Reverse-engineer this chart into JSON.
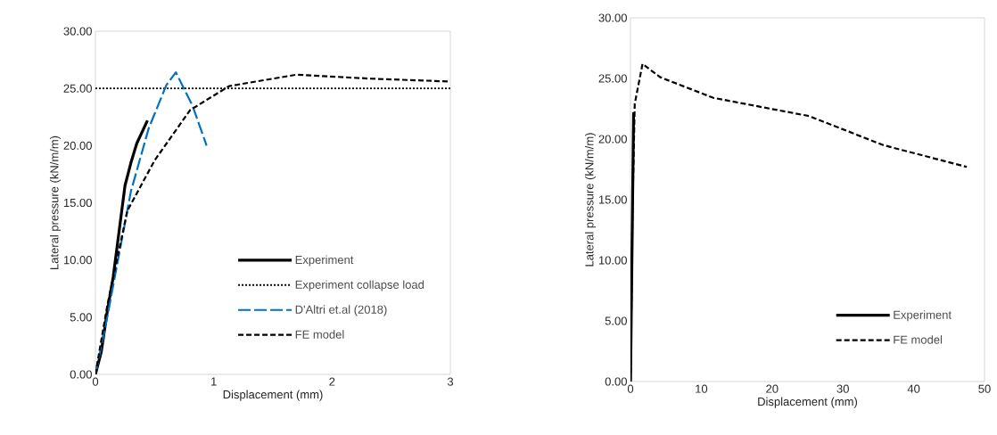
{
  "chart_data": [
    {
      "type": "line",
      "xlabel": "Displacement (mm)",
      "ylabel": "Lateral pressure (kN/m/m)",
      "series": [
        {
          "name": "Experiment",
          "color": "#000000",
          "line_style": "solid",
          "x": [
            0,
            0.05,
            0.1,
            0.15,
            0.2,
            0.25,
            0.3,
            0.35,
            0.44
          ],
          "values": [
            0,
            2,
            5.5,
            8.5,
            12.5,
            16.5,
            18.5,
            20.2,
            22.2
          ]
        },
        {
          "name": "Experiment collapse load",
          "color": "#000000",
          "line_style": "dotted",
          "x": [
            0,
            3
          ],
          "values": [
            25,
            25
          ]
        },
        {
          "name": "D'Altri et.al (2018)",
          "color": "#0070c0",
          "line_style": "long dashed",
          "x": [
            0,
            0.1,
            0.2,
            0.3,
            0.45,
            0.6,
            0.68,
            0.82,
            0.94
          ],
          "values": [
            0,
            5,
            10.5,
            16,
            21.5,
            25.3,
            26.4,
            23.5,
            20.0
          ]
        },
        {
          "name": "FE model",
          "color": "#000000",
          "line_style": "dashed",
          "x": [
            0,
            0.1,
            0.2,
            0.27,
            0.5,
            0.8,
            1.13,
            1.7,
            2.33,
            3
          ],
          "values": [
            0,
            6,
            10.9,
            14.3,
            18.7,
            23.1,
            25.2,
            26.2,
            25.85,
            25.6
          ]
        }
      ],
      "xlim": [
        0,
        3
      ],
      "xticks": [
        0,
        1,
        2,
        3
      ],
      "ylim": [
        0,
        30
      ],
      "yticks": [
        {
          "value": 0,
          "label": "0.00"
        },
        {
          "value": 5,
          "label": "5.00"
        },
        {
          "value": 10,
          "label": "10.00"
        },
        {
          "value": 15,
          "label": "15.00"
        },
        {
          "value": 20,
          "label": "20.00"
        },
        {
          "value": 25,
          "label": "25.00"
        },
        {
          "value": 30,
          "label": "30.00"
        }
      ],
      "legend": "bottom right",
      "grid": false
    },
    {
      "type": "line",
      "xlabel": "Displacement (mm)",
      "ylabel": "Lateral pressure (kN/m/m)",
      "series": [
        {
          "name": "Experiment",
          "color": "#000000",
          "line_style": "solid",
          "x": [
            0,
            0.2,
            0.44
          ],
          "values": [
            0,
            10,
            22.2
          ]
        },
        {
          "name": "FE model",
          "color": "#000000",
          "line_style": "dashed",
          "x": [
            0,
            0.3,
            0.6,
            1.7,
            4.2,
            11.7,
            25.2,
            35.7,
            47.5
          ],
          "values": [
            0,
            14.5,
            22.9,
            26.2,
            25.1,
            23.4,
            21.9,
            19.5,
            17.7
          ]
        }
      ],
      "xlim": [
        0,
        50
      ],
      "xticks": [
        0,
        10,
        20,
        30,
        40,
        50
      ],
      "ylim": [
        0,
        30
      ],
      "yticks": [
        {
          "value": 0,
          "label": "0.00"
        },
        {
          "value": 5,
          "label": "5.00"
        },
        {
          "value": 10,
          "label": "10.00"
        },
        {
          "value": 15,
          "label": "15.00"
        },
        {
          "value": 20,
          "label": "20.00"
        },
        {
          "value": 25,
          "label": "25.00"
        },
        {
          "value": 30,
          "label": "30.00"
        }
      ],
      "legend": "bottom right",
      "grid": false
    }
  ]
}
